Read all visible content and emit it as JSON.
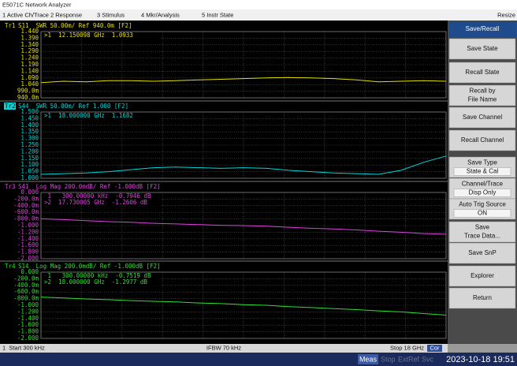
{
  "window_title": "E5071C Network Analyzer",
  "menu": [
    "1 Active Ch/Trace",
    "2 Response",
    "3 Stimulus",
    "4 Mkr/Analysis",
    "5 Instr State",
    "Resize"
  ],
  "panels": [
    {
      "trace": "Tr1",
      "settings": "S11  SWR 50.00m/ Ref 940.0m [F2]",
      "color": "#e6e000",
      "active": false,
      "markers": [
        ">1  12.150098 GHz  1.0933"
      ],
      "ylim": [
        0.94,
        1.44
      ],
      "yticks": [
        {
          "value": 1.44,
          "label": "1.440"
        },
        {
          "value": 1.39,
          "label": "1.390"
        },
        {
          "value": 1.34,
          "label": "1.340"
        },
        {
          "value": 1.29,
          "label": "1.290"
        },
        {
          "value": 1.24,
          "label": "1.240"
        },
        {
          "value": 1.19,
          "label": "1.190"
        },
        {
          "value": 1.14,
          "label": "1.140"
        },
        {
          "value": 1.09,
          "label": "1.090"
        },
        {
          "value": 1.04,
          "label": "1.040"
        },
        {
          "value": 0.99,
          "label": "990.0m"
        },
        {
          "value": 0.94,
          "label": "940.0m"
        }
      ],
      "values": [
        1.055,
        1.065,
        1.06,
        1.07,
        1.07,
        1.065,
        1.07,
        1.075,
        1.08,
        1.085,
        1.09,
        1.093,
        1.09,
        1.085,
        1.075,
        1.06,
        1.065,
        1.07,
        1.065
      ]
    },
    {
      "trace": "Tr2",
      "settings": "S44  SWR 50.00m/ Ref 1.000 [F2]",
      "color": "#00d8d8",
      "active": true,
      "markers": [
        ">1  18.000000 GHz  1.1682"
      ],
      "ylim": [
        1.0,
        1.5
      ],
      "yticks": [
        {
          "value": 1.5,
          "label": "1.500"
        },
        {
          "value": 1.45,
          "label": "1.450"
        },
        {
          "value": 1.4,
          "label": "1.400"
        },
        {
          "value": 1.35,
          "label": "1.350"
        },
        {
          "value": 1.3,
          "label": "1.300"
        },
        {
          "value": 1.25,
          "label": "1.250"
        },
        {
          "value": 1.2,
          "label": "1.200"
        },
        {
          "value": 1.15,
          "label": "1.150"
        },
        {
          "value": 1.1,
          "label": "1.100"
        },
        {
          "value": 1.05,
          "label": "1.050"
        },
        {
          "value": 1.0,
          "label": "1.000"
        }
      ],
      "values": [
        1.03,
        1.035,
        1.04,
        1.05,
        1.065,
        1.08,
        1.085,
        1.08,
        1.075,
        1.08,
        1.075,
        1.06,
        1.05,
        1.04,
        1.035,
        1.03,
        1.06,
        1.12,
        1.168
      ]
    },
    {
      "trace": "Tr3",
      "settings": "S41  Log Mag 200.0mdB/ Ref -1.000dB [F2]",
      "color": "#e040e0",
      "active": false,
      "markers": [
        " 1   300.00000 kHz  -0.7946 dB",
        ">2  17.730005 GHz  -1.2606 dB"
      ],
      "ylim": [
        -2.0,
        0.0
      ],
      "yticks": [
        {
          "value": 0,
          "label": "0.000"
        },
        {
          "value": -0.2,
          "label": "-200.0m"
        },
        {
          "value": -0.4,
          "label": "-400.0m"
        },
        {
          "value": -0.6,
          "label": "-600.0m"
        },
        {
          "value": -0.8,
          "label": "-800.0m"
        },
        {
          "value": -1.0,
          "label": "-1.000"
        },
        {
          "value": -1.2,
          "label": "-1.200"
        },
        {
          "value": -1.4,
          "label": "-1.400"
        },
        {
          "value": -1.6,
          "label": "-1.600"
        },
        {
          "value": -1.8,
          "label": "-1.800"
        },
        {
          "value": -2.0,
          "label": "-2.000"
        }
      ],
      "values": [
        -0.795,
        -0.82,
        -0.85,
        -0.88,
        -0.9,
        -0.93,
        -0.95,
        -0.97,
        -0.99,
        -1.0,
        -1.02,
        -1.05,
        -1.08,
        -1.1,
        -1.13,
        -1.17,
        -1.2,
        -1.24,
        -1.26
      ]
    },
    {
      "trace": "Tr4",
      "settings": "S14  Log Mag 200.0mdB/ Ref -1.000dB [F2]",
      "color": "#30e030",
      "active": false,
      "markers": [
        " 1   300.00000 kHz  -0.7519 dB",
        ">2  18.000000 GHz  -1.2977 dB"
      ],
      "ylim": [
        -2.0,
        0.0
      ],
      "yticks": [
        {
          "value": 0,
          "label": "0.000"
        },
        {
          "value": -0.2,
          "label": "-200.0m"
        },
        {
          "value": -0.4,
          "label": "-400.0m"
        },
        {
          "value": -0.6,
          "label": "-600.0m"
        },
        {
          "value": -0.8,
          "label": "-800.0m"
        },
        {
          "value": -1.0,
          "label": "-1.000"
        },
        {
          "value": -1.2,
          "label": "-1.200"
        },
        {
          "value": -1.4,
          "label": "-1.400"
        },
        {
          "value": -1.6,
          "label": "-1.600"
        },
        {
          "value": -1.8,
          "label": "-1.800"
        },
        {
          "value": -2.0,
          "label": "-2.000"
        }
      ],
      "values": [
        -0.752,
        -0.78,
        -0.81,
        -0.83,
        -0.86,
        -0.88,
        -0.9,
        -0.93,
        -0.95,
        -0.98,
        -1.0,
        -1.04,
        -1.07,
        -1.1,
        -1.13,
        -1.17,
        -1.2,
        -1.25,
        -1.298
      ]
    }
  ],
  "status": {
    "start": "1  Start 300 kHz",
    "ifbw": "IFBW 70 kHz",
    "stop": "Stop 18 GHz",
    "cor": "Cor"
  },
  "softkeys": {
    "title": "Save/Recall",
    "keys": [
      [
        "Save State"
      ],
      [
        "Recall State"
      ],
      [
        "Recall by",
        "File Name"
      ],
      [
        "Save Channel"
      ],
      [
        "Recall Channel"
      ],
      [
        "Save Type",
        "State & Cal"
      ],
      [
        "Channel/Trace",
        "Disp Only"
      ],
      [
        "Auto Trig Source",
        "ON"
      ],
      [
        "Save",
        "Trace Data..."
      ],
      [
        "Save SnP"
      ],
      [
        "Explorer"
      ],
      [
        "Return"
      ]
    ]
  },
  "footer": {
    "items": [
      "Meas",
      "Stop",
      "ExtRef",
      "Svc"
    ],
    "datetime": "2023-10-18 19:51"
  }
}
